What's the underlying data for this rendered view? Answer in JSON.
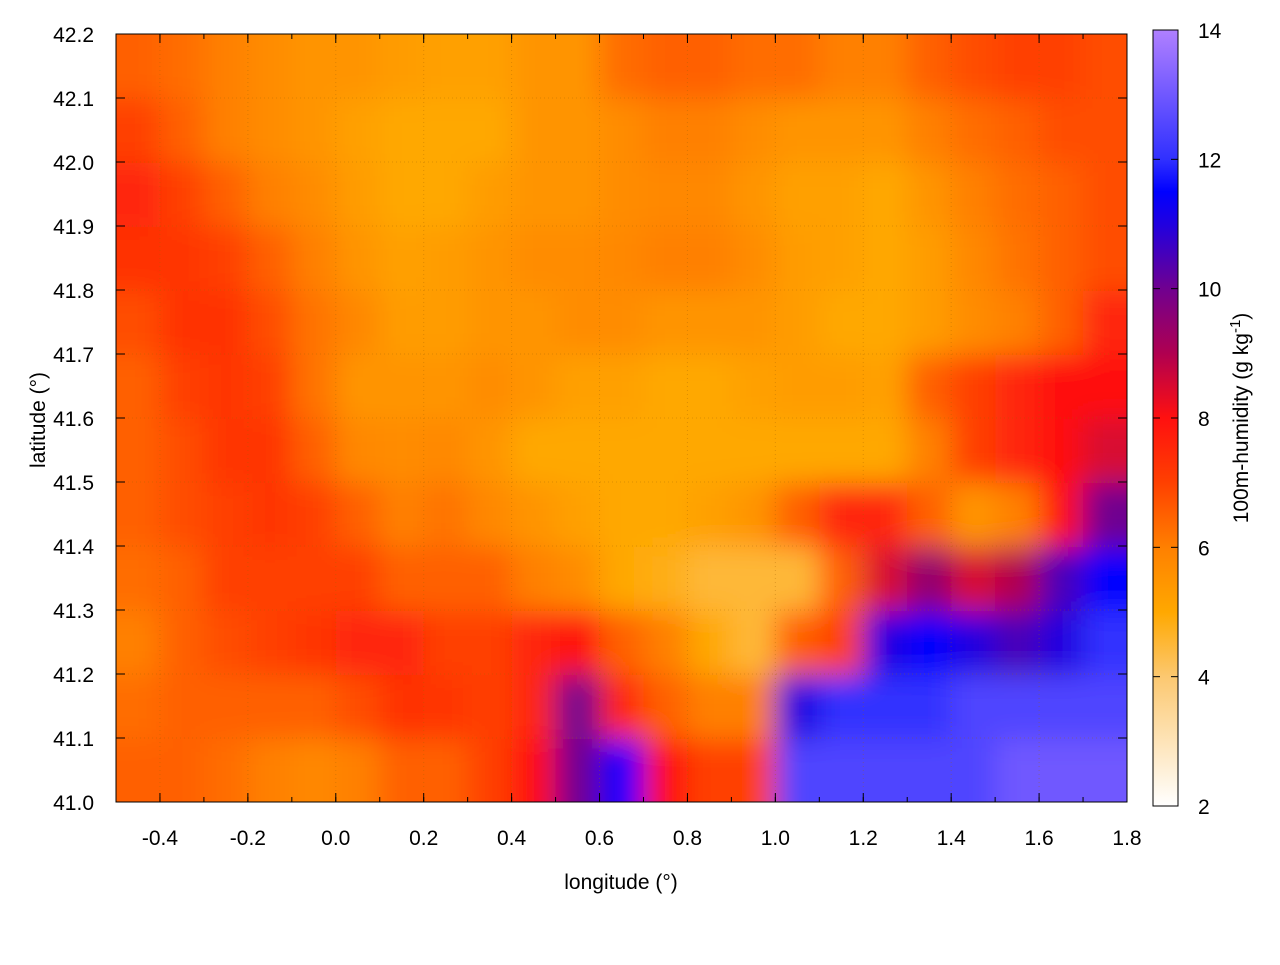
{
  "chart_data": {
    "type": "heatmap",
    "xlabel": "longitude (°)",
    "ylabel": "latitude (°)",
    "colorbar_label": "100m-humidity (g kg",
    "colorbar_label_sup": "-1",
    "colorbar_label_end": ")",
    "xlim": [
      -0.5,
      1.8
    ],
    "ylim": [
      41.0,
      42.2
    ],
    "clim": [
      2,
      14
    ],
    "xticks": [
      "-0.4",
      "-0.2",
      "0.0",
      "0.2",
      "0.4",
      "0.6",
      "0.8",
      "1.0",
      "1.2",
      "1.4",
      "1.6",
      "1.8"
    ],
    "yticks": [
      "41.0",
      "41.1",
      "41.2",
      "41.3",
      "41.4",
      "41.5",
      "41.6",
      "41.7",
      "41.8",
      "41.9",
      "42.0",
      "42.1",
      "42.2"
    ],
    "cticks": [
      "2",
      "4",
      "6",
      "8",
      "10",
      "12",
      "14"
    ],
    "grid": true,
    "cell_size_deg": 0.1,
    "colormap": [
      [
        2,
        "#ffffff"
      ],
      [
        4,
        "#fcc870"
      ],
      [
        5,
        "#ffa800"
      ],
      [
        6,
        "#ff8000"
      ],
      [
        7,
        "#ff4000"
      ],
      [
        8,
        "#ff1010"
      ],
      [
        9,
        "#b00050"
      ],
      [
        10,
        "#700090"
      ],
      [
        11,
        "#2000e0"
      ],
      [
        11.5,
        "#0000ff"
      ],
      [
        12,
        "#3030ff"
      ],
      [
        14,
        "#b080ff"
      ]
    ],
    "rows_from_lat_41_0": [
      [
        6.5,
        6.5,
        6.3,
        6,
        5.8,
        6,
        6.5,
        6.5,
        7,
        8,
        10,
        11.5,
        8,
        7,
        7,
        12.5,
        12.5,
        12.5,
        12.5,
        12.5,
        13,
        13,
        13
      ],
      [
        6.3,
        6.5,
        6.5,
        6.5,
        6.5,
        6.8,
        7.3,
        7.2,
        7,
        7.5,
        10,
        7.5,
        6.5,
        6,
        6,
        11,
        12,
        12,
        12,
        12.5,
        12.5,
        12.5,
        12.5
      ],
      [
        6,
        6.5,
        6.8,
        7,
        7.2,
        7.5,
        7.5,
        7,
        7,
        7.5,
        8,
        6.5,
        6,
        5,
        4.5,
        6.5,
        7,
        11,
        11.5,
        11,
        10.5,
        11,
        12
      ],
      [
        6.3,
        6.5,
        7,
        7,
        7,
        7,
        6.5,
        6.5,
        6.5,
        6,
        5.7,
        5,
        4.8,
        4.5,
        4.5,
        4.5,
        6.5,
        8.5,
        9.5,
        8.5,
        9,
        10.5,
        11.5
      ],
      [
        6.5,
        6.8,
        7,
        7.2,
        7,
        6.5,
        6,
        6.2,
        5.8,
        5.5,
        5.2,
        5,
        5,
        5.2,
        5.5,
        6.5,
        7.5,
        7.5,
        6.5,
        5.5,
        6,
        8,
        10
      ],
      [
        6.5,
        6.8,
        7.2,
        7.2,
        6.5,
        5.8,
        5.7,
        5.8,
        5.5,
        5,
        5,
        5,
        5,
        5,
        5,
        5,
        5,
        5,
        6,
        7,
        7.5,
        8,
        8.5
      ],
      [
        6.5,
        7,
        7.2,
        7,
        6.2,
        5.5,
        5.5,
        5.5,
        5.7,
        5.5,
        5.2,
        5.2,
        5,
        5,
        5.2,
        5.3,
        5.3,
        5.2,
        6.5,
        7,
        7.5,
        8,
        8
      ],
      [
        6.8,
        7.3,
        7.3,
        6.8,
        6.2,
        5.8,
        5.3,
        5.3,
        5.5,
        5.5,
        5.7,
        5.7,
        5.5,
        5.5,
        5.5,
        5.3,
        5,
        5,
        5.3,
        5.7,
        6,
        6.5,
        7.5
      ],
      [
        7.3,
        7.2,
        7,
        6.5,
        6,
        5.5,
        5.2,
        5.3,
        5.5,
        5.7,
        5.7,
        5.8,
        6,
        6,
        5.7,
        5.3,
        5.2,
        5,
        5.3,
        5.8,
        6.2,
        6.5,
        6.8
      ],
      [
        7.5,
        7,
        6.5,
        6,
        5.7,
        5.3,
        5,
        5,
        5.3,
        5.5,
        5.5,
        5.7,
        5.8,
        5.8,
        5.5,
        5.2,
        5.2,
        5,
        5.5,
        6,
        6.3,
        6.5,
        6.8
      ],
      [
        7,
        6.5,
        6,
        5.7,
        5.5,
        5.2,
        5,
        5,
        5,
        5.5,
        5.5,
        5.7,
        6,
        6,
        5.7,
        5.5,
        5.5,
        5.5,
        6,
        6.3,
        6.5,
        6.8,
        6.8
      ],
      [
        6.5,
        6.3,
        6,
        5.7,
        5.5,
        5.5,
        5.3,
        5.2,
        5.2,
        5.5,
        5.5,
        6.3,
        6.5,
        6.5,
        6.3,
        6.3,
        6,
        6,
        6.5,
        6.8,
        7,
        7,
        6.8
      ]
    ]
  }
}
